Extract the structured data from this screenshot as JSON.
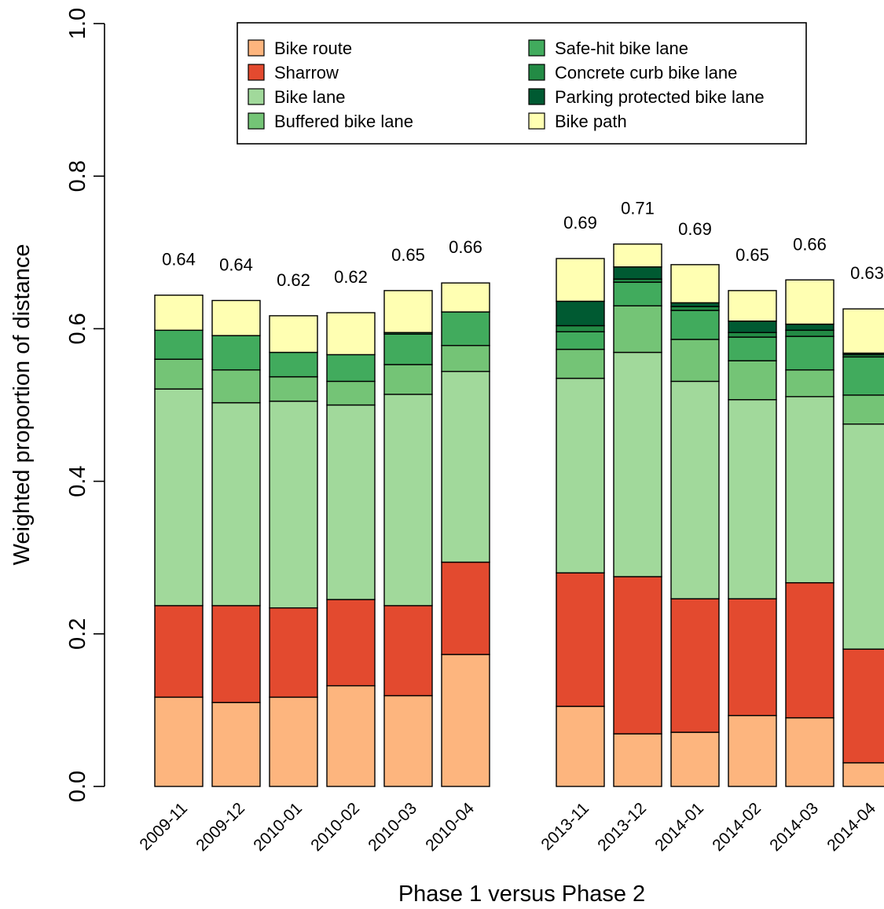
{
  "chart_data": {
    "type": "bar",
    "stacked": true,
    "xlabel": "Phase 1 versus Phase 2",
    "ylabel": "Weighted proportion of distance",
    "ylim": [
      0,
      1
    ],
    "yticks": [
      "0.0",
      "0.2",
      "0.4",
      "0.6",
      "0.8",
      "1.0"
    ],
    "groups": [
      {
        "categories": [
          "2009-11",
          "2009-12",
          "2010-01",
          "2010-02",
          "2010-03",
          "2010-04"
        ]
      },
      {
        "categories": [
          "2013-11",
          "2013-12",
          "2014-01",
          "2014-02",
          "2014-03",
          "2014-04"
        ]
      }
    ],
    "categories": [
      "2009-11",
      "2009-12",
      "2010-01",
      "2010-02",
      "2010-03",
      "2010-04",
      "2013-11",
      "2013-12",
      "2014-01",
      "2014-02",
      "2014-03",
      "2014-04"
    ],
    "total_labels": [
      "0.64",
      "0.64",
      "0.62",
      "0.62",
      "0.65",
      "0.66",
      "0.69",
      "0.71",
      "0.69",
      "0.65",
      "0.66",
      "0.63"
    ],
    "series": [
      {
        "name": "Bike route",
        "color": "#FDB57E",
        "values": [
          0.117,
          0.11,
          0.117,
          0.132,
          0.119,
          0.173,
          0.105,
          0.069,
          0.071,
          0.093,
          0.09,
          0.031
        ]
      },
      {
        "name": "Sharrow",
        "color": "#E34A2F",
        "values": [
          0.12,
          0.127,
          0.117,
          0.113,
          0.118,
          0.121,
          0.175,
          0.206,
          0.175,
          0.153,
          0.177,
          0.149
        ]
      },
      {
        "name": "Bike lane",
        "color": "#A1D99B",
        "values": [
          0.284,
          0.266,
          0.271,
          0.255,
          0.277,
          0.25,
          0.255,
          0.294,
          0.285,
          0.261,
          0.244,
          0.295
        ]
      },
      {
        "name": "Buffered bike lane",
        "color": "#74C476",
        "values": [
          0.039,
          0.043,
          0.032,
          0.031,
          0.039,
          0.034,
          0.038,
          0.061,
          0.055,
          0.051,
          0.035,
          0.038
        ]
      },
      {
        "name": "Safe-hit bike lane",
        "color": "#41AB5D",
        "values": [
          0.038,
          0.045,
          0.032,
          0.035,
          0.04,
          0.044,
          0.023,
          0.031,
          0.038,
          0.031,
          0.044,
          0.05
        ]
      },
      {
        "name": "Concrete curb bike lane",
        "color": "#238B45",
        "values": [
          0.0,
          0.0,
          0.0,
          0.0,
          0.002,
          0.0,
          0.008,
          0.004,
          0.005,
          0.006,
          0.008,
          0.003
        ]
      },
      {
        "name": "Parking protected bike lane",
        "color": "#005A32",
        "values": [
          0.0,
          0.0,
          0.0,
          0.0,
          0.0,
          0.0,
          0.032,
          0.016,
          0.005,
          0.015,
          0.008,
          0.002
        ]
      },
      {
        "name": "Bike path",
        "color": "#FFFFB2",
        "values": [
          0.046,
          0.046,
          0.048,
          0.055,
          0.055,
          0.038,
          0.056,
          0.03,
          0.05,
          0.04,
          0.058,
          0.058
        ]
      }
    ],
    "legend": {
      "position": "top",
      "columns": 2
    },
    "grid": false
  }
}
